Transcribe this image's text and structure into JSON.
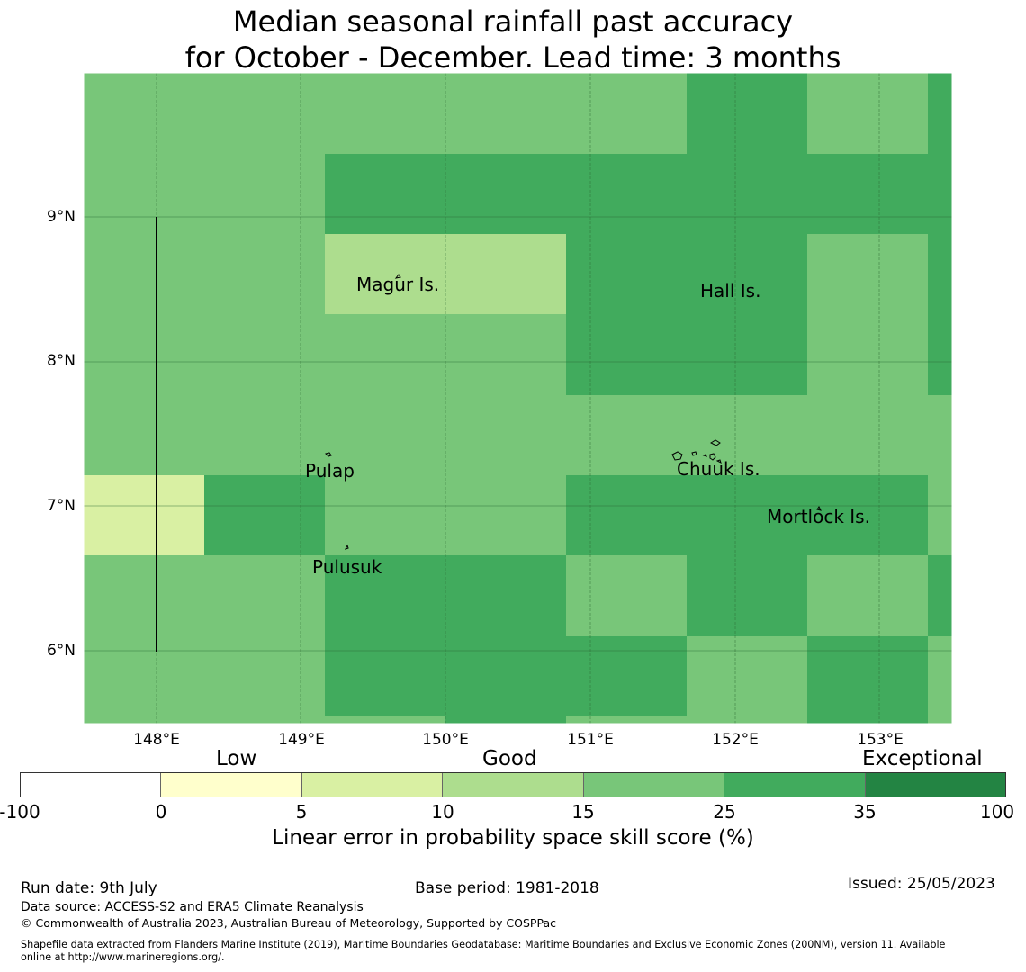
{
  "title": {
    "line1": "Median seasonal rainfall past accuracy",
    "line2": "for October - December. Lead time: 3 months"
  },
  "map": {
    "lat_labels": [
      "9°N",
      "8°N",
      "7°N",
      "6°N"
    ],
    "lon_labels": [
      "148°E",
      "149°E",
      "150°E",
      "151°E",
      "152°E",
      "153°E"
    ],
    "places": [
      "Magur Is.",
      "Hall Is.",
      "Pulap",
      "Chuuk Is.",
      "Mortlock Is.",
      "Pulusuk"
    ],
    "colors": {
      "class_0_5": "#d9f0a3",
      "class_5_10": "#addd8e",
      "class_15_25": "#78c679",
      "class_25_35": "#41ab5d"
    }
  },
  "legend": {
    "categories": [
      "Low",
      "Good",
      "Exceptional"
    ],
    "ticks": [
      "-100",
      "0",
      "5",
      "10",
      "15",
      "25",
      "35",
      "100"
    ],
    "colors": [
      "#ffffff",
      "#ffffcc",
      "#d9f0a3",
      "#addd8e",
      "#78c679",
      "#41ab5d",
      "#238443"
    ],
    "label": "Linear error in probability space skill score (%)"
  },
  "footer": {
    "run_date": "Run date: 9th July",
    "base_period": "Base period: 1981-2018",
    "issued": "Issued: 25/05/2023",
    "data_source": "Data source: ACCESS-S2 and ERA5 Climate Reanalysis",
    "copyright": "© Commonwealth of Australia 2023, Australian Bureau of Meteorology, Supported by COSPPac",
    "shapefile_1": "Shapefile data extracted from Flanders Marine Institute (2019), Maritime Boundaries Geodatabase: Maritime Boundaries and Exclusive Economic Zones (200NM), version 11. Available",
    "shapefile_2": "online at http://www.marineregions.org/."
  }
}
